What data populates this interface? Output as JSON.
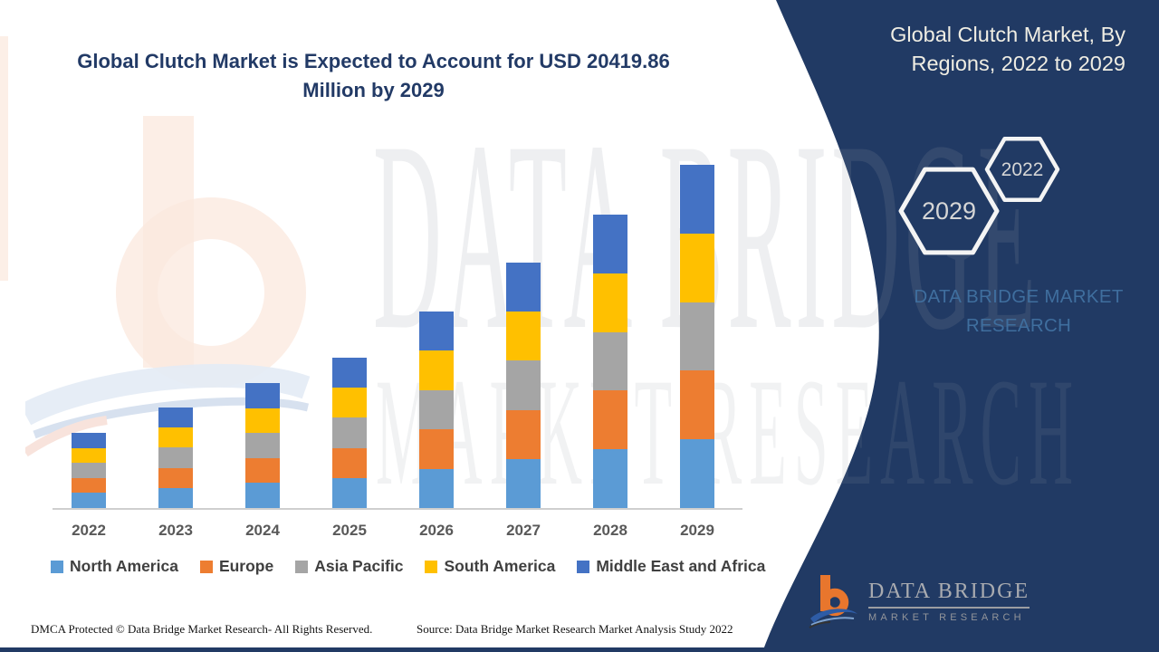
{
  "header": {
    "title_line1": "Global Clutch Market is Expected to Account for USD 20419.86",
    "title_line2": "Million by 2029"
  },
  "side_panel": {
    "background_color": "#213A64",
    "title_line1": "Global Clutch Market, By",
    "title_line2": "Regions, 2022 to 2029",
    "hexagon_back_year": "2029",
    "hexagon_front_year": "2022",
    "brand_line1": "DATA BRIDGE MARKET",
    "brand_line2": "RESEARCH",
    "logo_title": "DATA BRIDGE",
    "logo_subtitle": "MARKET RESEARCH"
  },
  "watermark": {
    "line1": "DATA BRIDGE",
    "line2": "MARKET RESEARCH"
  },
  "footer": {
    "left": "DMCA Protected © Data Bridge Market Research- All Rights Reserved.",
    "right": "Source: Data Bridge Market Research Market Analysis Study 2022"
  },
  "chart_data": {
    "type": "bar",
    "stacked": true,
    "title": "Global Clutch Market is Expected to Account for USD 20419.86 Million by 2029",
    "unit": "USD Million",
    "xlabel": "",
    "ylabel": "",
    "grid": false,
    "y_axis_visible": false,
    "legend_position": "bottom",
    "categories": [
      "2022",
      "2023",
      "2024",
      "2025",
      "2026",
      "2027",
      "2028",
      "2029"
    ],
    "series": [
      {
        "name": "North America",
        "color": "#5B9BD5",
        "values": [
          894,
          1196,
          1487,
          1789,
          2338,
          2920,
          3491,
          4084
        ]
      },
      {
        "name": "Europe",
        "color": "#ED7D31",
        "values": [
          894,
          1196,
          1487,
          1789,
          2338,
          2920,
          3491,
          4084
        ]
      },
      {
        "name": "Asia Pacific",
        "color": "#A5A5A5",
        "values": [
          894,
          1196,
          1487,
          1789,
          2338,
          2920,
          3491,
          4084
        ]
      },
      {
        "name": "South America",
        "color": "#FFC000",
        "values": [
          894,
          1196,
          1487,
          1789,
          2338,
          2920,
          3491,
          4084
        ]
      },
      {
        "name": "Middle East and Africa",
        "color": "#4472C4",
        "values": [
          894,
          1196,
          1487,
          1789,
          2338,
          2920,
          3491,
          4083.86
        ]
      }
    ],
    "totals_estimated": [
      4470,
      5980,
      7435,
      8945,
      11690,
      14600,
      17455,
      20419.86
    ]
  }
}
